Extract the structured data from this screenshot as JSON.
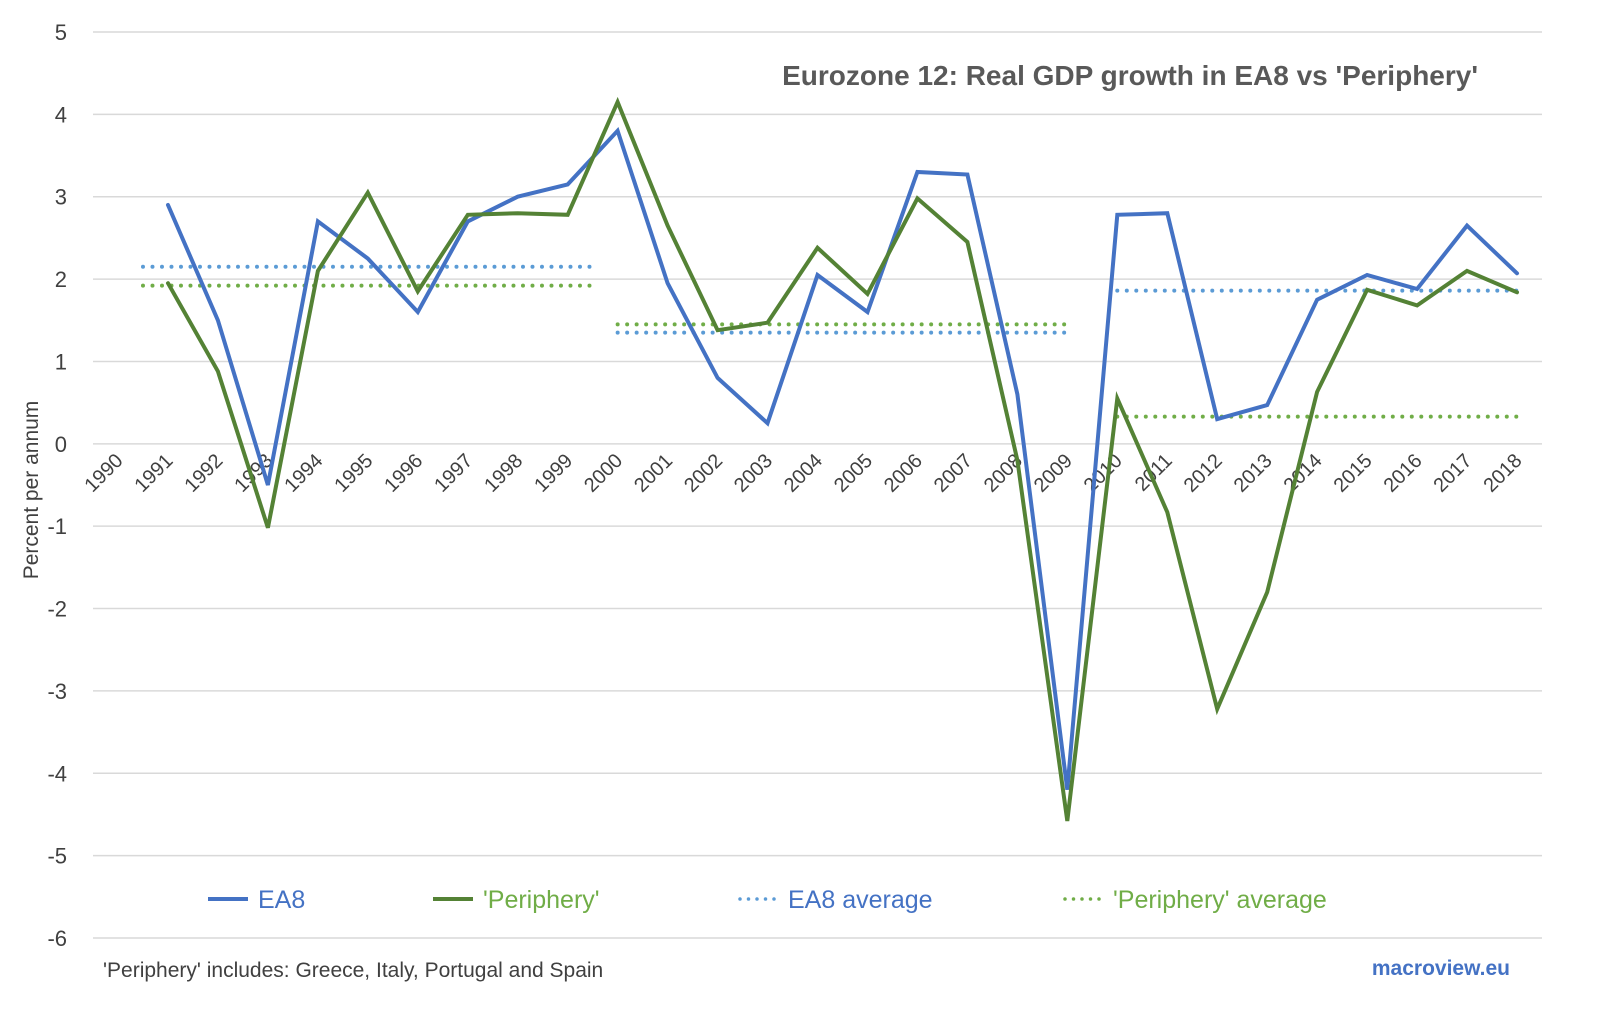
{
  "chart_data": {
    "type": "line",
    "title": "Eurozone 12: Real GDP growth in EA8 vs 'Periphery'",
    "xlabel": "",
    "ylabel": "Percent per annum",
    "x": [
      1990,
      1991,
      1992,
      1993,
      1994,
      1995,
      1996,
      1997,
      1998,
      1999,
      2000,
      2001,
      2002,
      2003,
      2004,
      2005,
      2006,
      2007,
      2008,
      2009,
      2010,
      2011,
      2012,
      2013,
      2014,
      2015,
      2016,
      2017,
      2018
    ],
    "x_tick_labels": [
      "1990",
      "1991",
      "1992",
      "1993",
      "1994",
      "1995",
      "1996",
      "1997",
      "1998",
      "1999",
      "2000",
      "2001",
      "2002",
      "2003",
      "2004",
      "2005",
      "2006",
      "2007",
      "2008",
      "2009",
      "2010",
      "2011",
      "2012",
      "2013",
      "2014",
      "2015",
      "2016",
      "2017",
      "2018"
    ],
    "ylim": [
      -6,
      5
    ],
    "y_ticks": [
      5,
      4,
      3,
      2,
      1,
      0,
      -1,
      -2,
      -3,
      -4,
      -5,
      -6
    ],
    "y_tick_labels": [
      "5",
      "4",
      "3",
      "2",
      "1",
      "0",
      "-1",
      "-2",
      "-3",
      "-4",
      "-5",
      "-6"
    ],
    "grid": true,
    "legend_position": "bottom",
    "series": [
      {
        "name": "EA8",
        "style": "solid",
        "color": "#4472c4",
        "values": [
          null,
          2.9,
          1.5,
          -0.5,
          2.7,
          2.25,
          1.6,
          2.7,
          3.0,
          3.15,
          3.8,
          1.95,
          0.8,
          0.25,
          2.05,
          1.6,
          3.3,
          3.27,
          0.6,
          -4.2,
          2.78,
          2.8,
          0.3,
          0.47,
          1.75,
          2.05,
          1.88,
          2.65,
          2.07
        ]
      },
      {
        "name": "'Periphery'",
        "style": "solid",
        "color": "#548235",
        "values": [
          null,
          1.95,
          0.88,
          -1.02,
          2.1,
          3.05,
          1.85,
          2.78,
          2.8,
          2.78,
          4.15,
          2.65,
          1.38,
          1.47,
          2.38,
          1.82,
          2.98,
          2.45,
          -0.2,
          -4.58,
          0.55,
          -0.83,
          -3.22,
          -1.8,
          0.63,
          1.87,
          1.68,
          2.1,
          1.84
        ]
      },
      {
        "name": "EA8 average",
        "style": "dotted",
        "color": "#5b9bd5",
        "segments": [
          {
            "from": 1990.5,
            "to": 1999.5,
            "value": 2.15
          },
          {
            "from": 2000,
            "to": 2009,
            "value": 1.35
          },
          {
            "from": 2010,
            "to": 2018,
            "value": 1.86
          }
        ]
      },
      {
        "name": "'Periphery' average",
        "style": "dotted",
        "color": "#70ad47",
        "segments": [
          {
            "from": 1990.5,
            "to": 1999.5,
            "value": 1.92
          },
          {
            "from": 2000,
            "to": 2009,
            "value": 1.45
          },
          {
            "from": 2010,
            "to": 2018,
            "value": 0.33
          }
        ]
      }
    ],
    "footnote": "'Periphery' includes: Greece, Italy, Portugal and Spain",
    "source": "macroview.eu"
  },
  "legend": [
    {
      "label": "EA8",
      "style": "solid",
      "line_color": "#4472c4",
      "text_color": "#4472c4"
    },
    {
      "label": "'Periphery'",
      "style": "solid",
      "line_color": "#548235",
      "text_color": "#70ad47"
    },
    {
      "label": "EA8 average",
      "style": "dotted",
      "line_color": "#5b9bd5",
      "text_color": "#4472c4"
    },
    {
      "label": "'Periphery' average",
      "style": "dotted",
      "line_color": "#70ad47",
      "text_color": "#70ad47"
    }
  ],
  "colors": {
    "grid": "#d9d9d9",
    "axis_text": "#404040",
    "title": "#595959"
  }
}
